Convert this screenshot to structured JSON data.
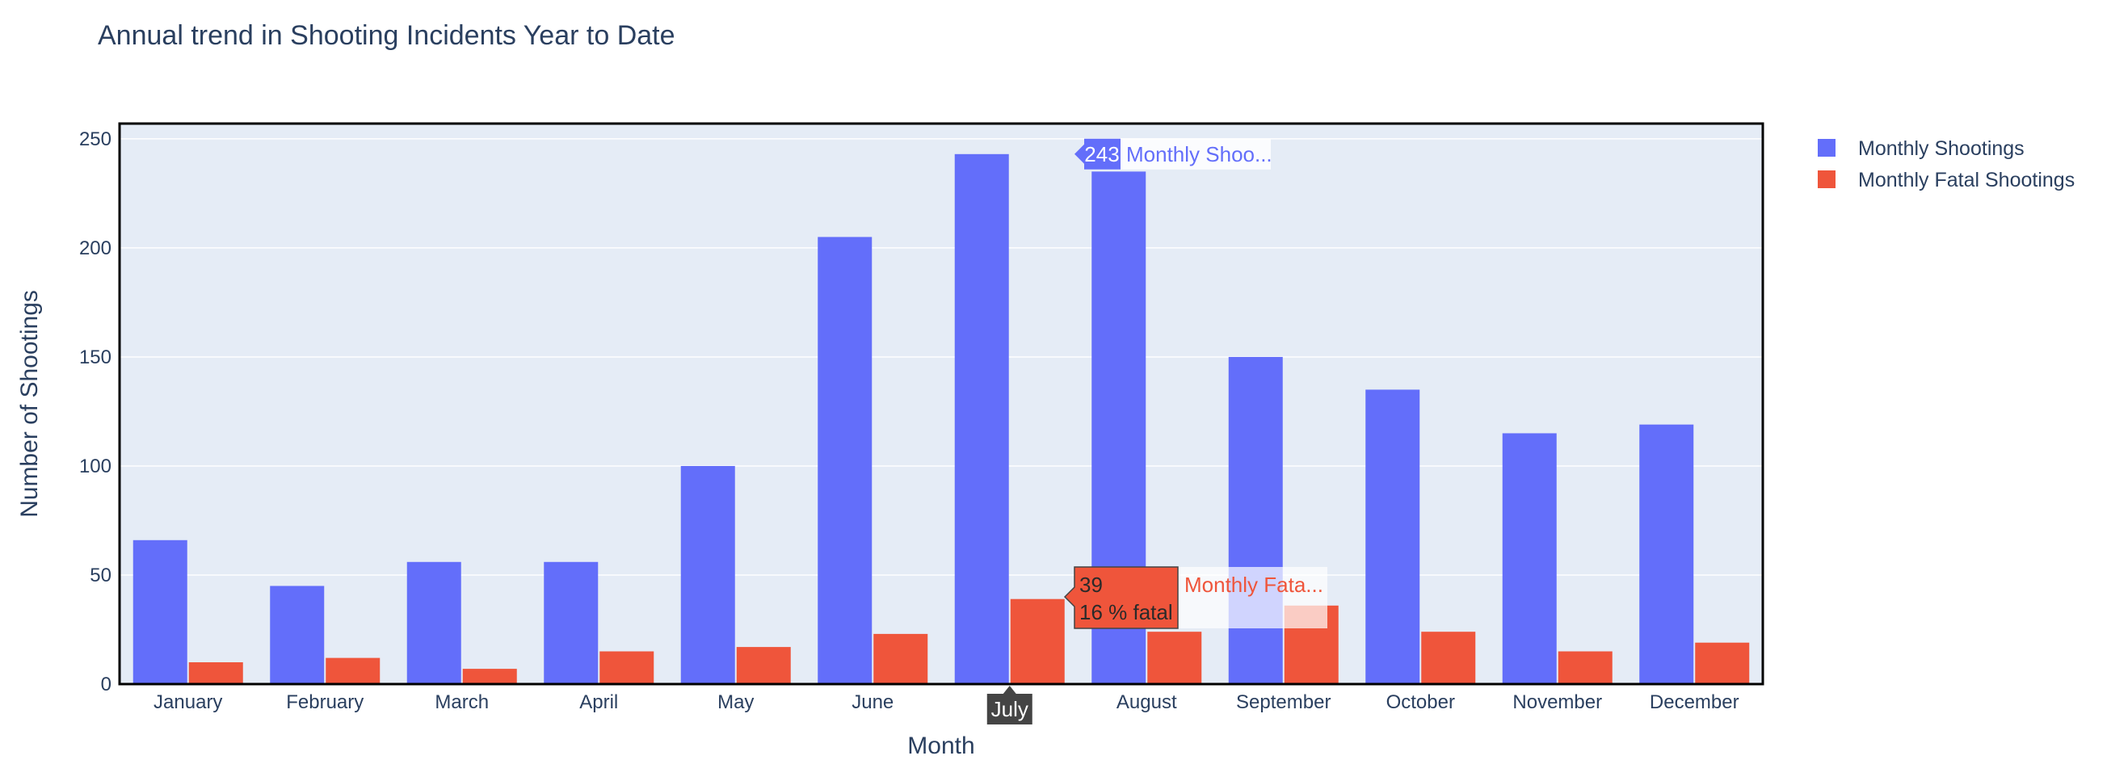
{
  "chart_data": {
    "type": "bar",
    "title": "Annual trend in Shooting Incidents Year to Date",
    "xlabel": "Month",
    "ylabel": "Number of Shootings",
    "categories": [
      "January",
      "February",
      "March",
      "April",
      "May",
      "June",
      "July",
      "August",
      "September",
      "October",
      "November",
      "December"
    ],
    "series": [
      {
        "name": "Monthly Shootings",
        "color": "#636efa",
        "values": [
          66,
          45,
          56,
          56,
          100,
          205,
          243,
          235,
          150,
          135,
          115,
          119
        ]
      },
      {
        "name": "Monthly Fatal Shootings",
        "color": "#ef553b",
        "values": [
          10,
          12,
          7,
          15,
          17,
          23,
          39,
          24,
          36,
          24,
          15,
          19
        ]
      }
    ],
    "ylim": [
      0,
      257
    ],
    "yticks": [
      0,
      50,
      100,
      150,
      200,
      250
    ],
    "grid": true,
    "legend_position": "top-right",
    "plot_background": "#e5ecf6"
  },
  "hover": {
    "category_label": "July",
    "total_value": "243",
    "total_trace": "Monthly Shoo...",
    "fatal_value": "39",
    "fatal_percent": "16 % fatal",
    "fatal_trace": "Monthly Fata..."
  }
}
